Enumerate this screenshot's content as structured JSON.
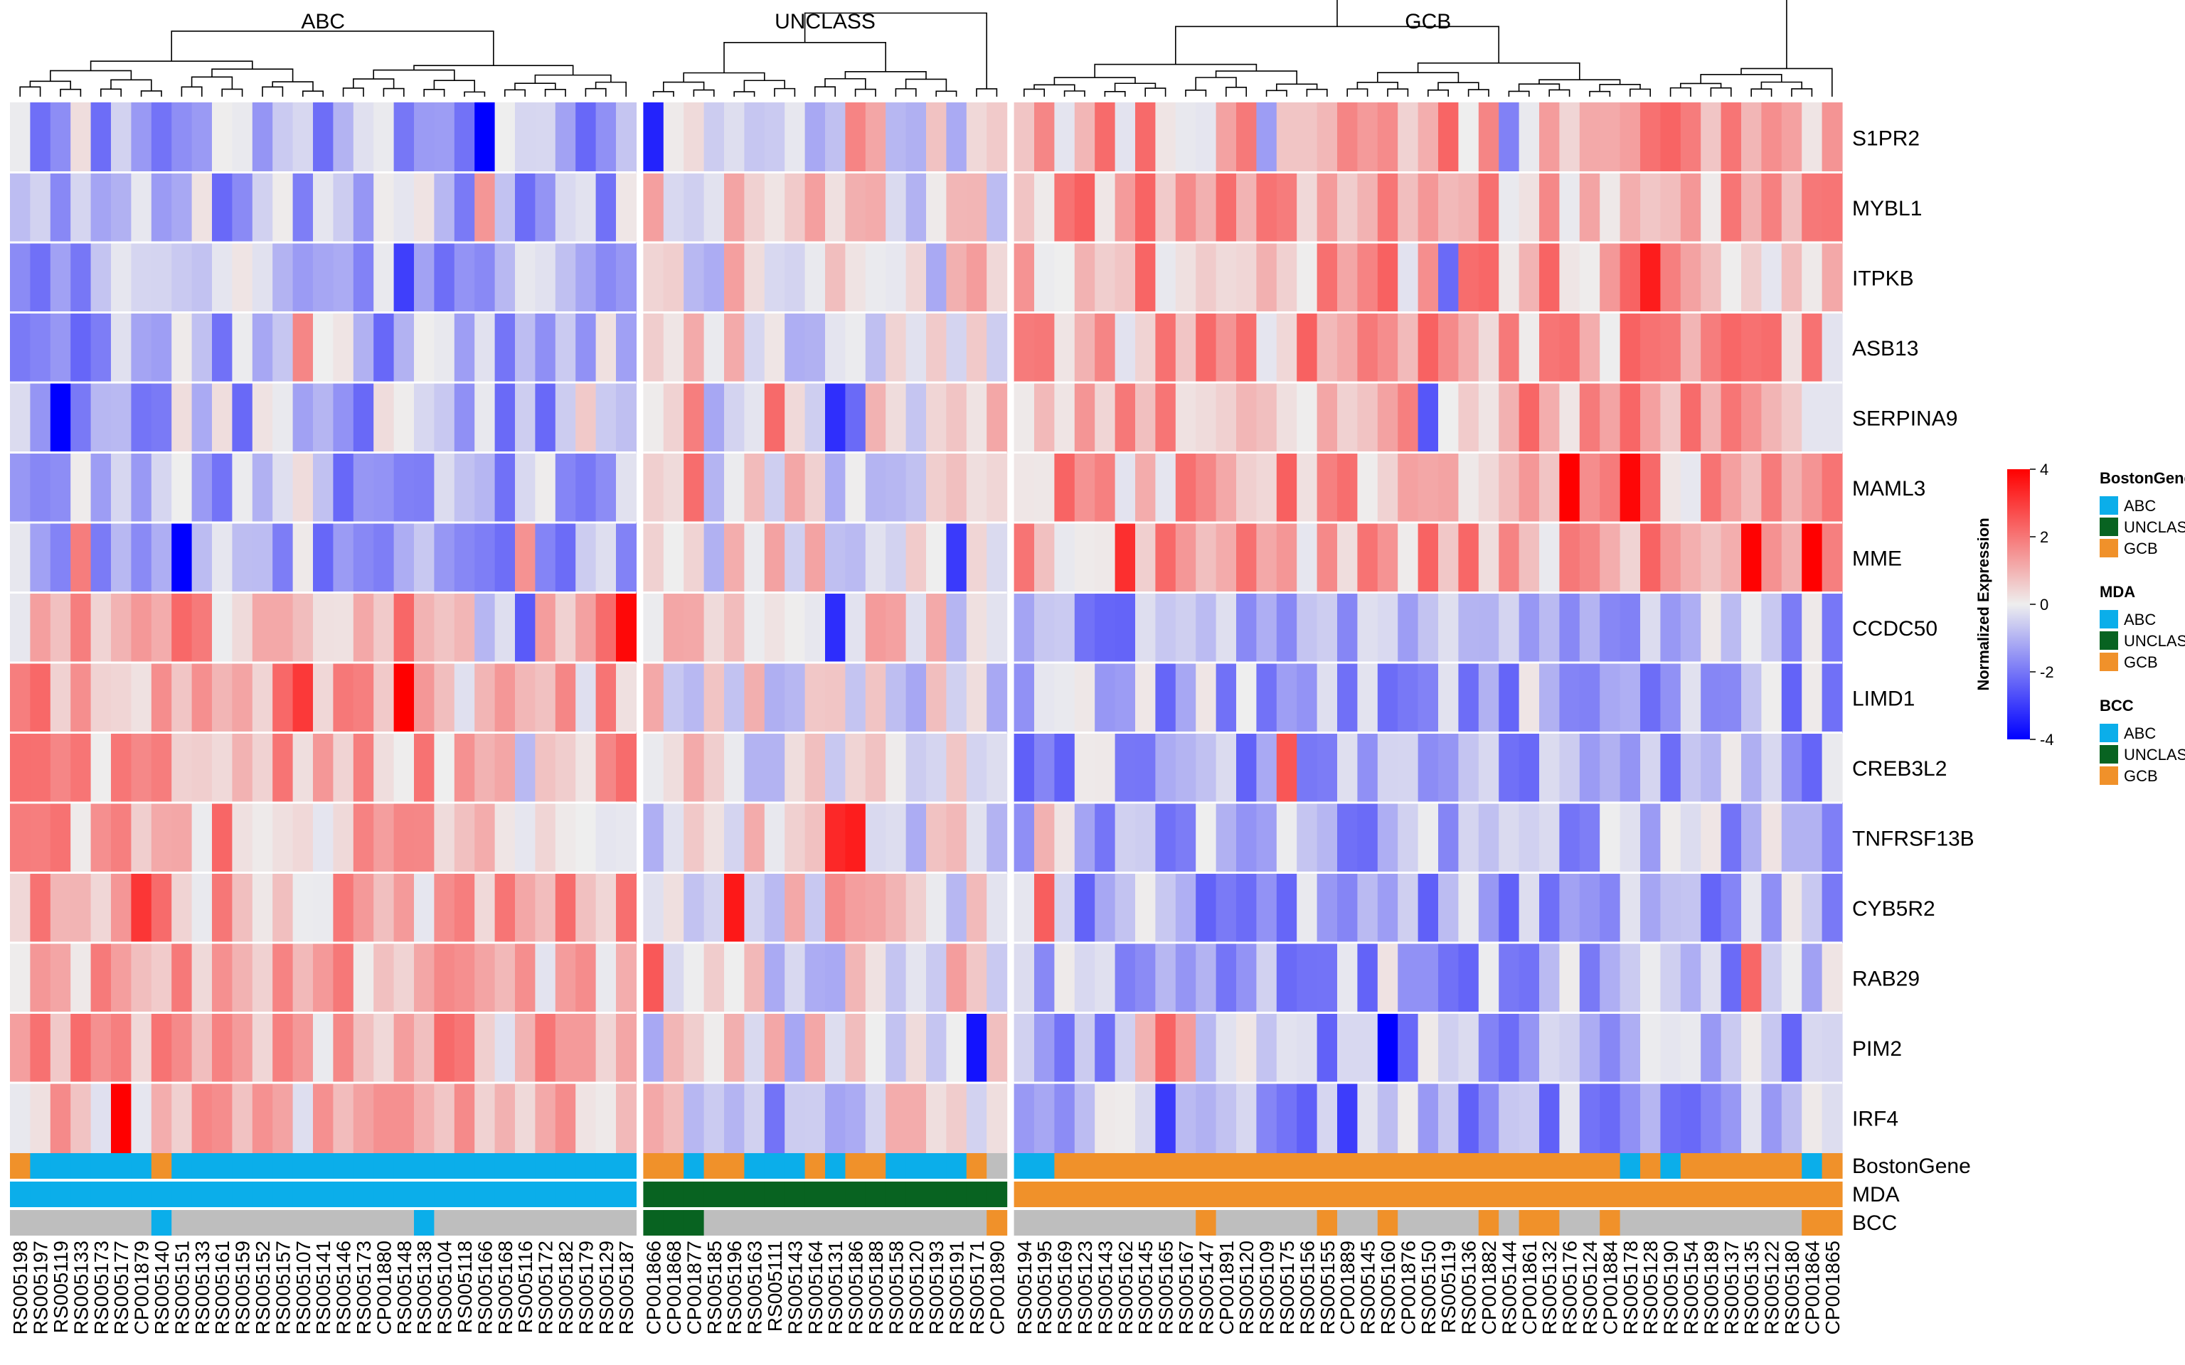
{
  "chart_data": {
    "type": "heatmap",
    "title": "",
    "panels": [
      {
        "name": "ABC",
        "samples": [
          "RS005198",
          "RS005197",
          "RS005119",
          "RS005133",
          "RS005173",
          "RS005177",
          "CP001879",
          "RS005140",
          "RS005151",
          "RS005133",
          "RS005161",
          "RS005159",
          "RS005152",
          "RS005157",
          "RS005107",
          "RS005141",
          "RS005146",
          "RS005173",
          "CP001880",
          "RS005148",
          "RS005138",
          "RS005104",
          "RS005118",
          "RS005166",
          "RS005168",
          "RS005116",
          "RS005172",
          "RS005182",
          "RS005179",
          "RS005129",
          "RS005187"
        ]
      },
      {
        "name": "UNCLASS",
        "samples": [
          "CP001866",
          "CP001868",
          "CP001877",
          "RS005185",
          "RS005196",
          "RS005163",
          "RS005111",
          "RS005143",
          "RS005164",
          "RS005131",
          "RS005186",
          "RS005188",
          "RS005158",
          "RS005120",
          "RS005193",
          "RS005191",
          "RS005171",
          "CP001890"
        ]
      },
      {
        "name": "GCB",
        "samples": [
          "RS005194",
          "RS005195",
          "RS005169",
          "RS005123",
          "RS005143",
          "RS005162",
          "RS005145",
          "RS005165",
          "RS005167",
          "RS005147",
          "CP001891",
          "RS005120",
          "RS005109",
          "RS005175",
          "RS005156",
          "RS005155",
          "CP001889",
          "RS005145",
          "RS005160",
          "CP001876",
          "RS005150",
          "RS005119",
          "RS005136",
          "CP001882",
          "RS005144",
          "CP001861",
          "RS005132",
          "RS005176",
          "RS005124",
          "CP001884",
          "RS005178",
          "RS005128",
          "RS005190",
          "RS005154",
          "RS005189",
          "RS005137",
          "RS005135",
          "RS005122",
          "RS005180",
          "CP001864",
          "CP001865"
        ]
      }
    ],
    "genes": [
      "S1PR2",
      "MYBL1",
      "ITPKB",
      "ASB13",
      "SERPINA9",
      "MAML3",
      "MME",
      "CCDC50",
      "LIMD1",
      "CREB3L2",
      "TNFRSF13B",
      "CYB5R2",
      "RAB29",
      "PIM2",
      "IRF4"
    ],
    "annotation_tracks": [
      "BostonGene",
      "MDA",
      "BCC"
    ],
    "legend": {
      "title": "Normalized Expression",
      "ticks": [
        "4",
        "2",
        "0",
        "-2",
        "-4"
      ],
      "range": [
        -4,
        4
      ],
      "groups": [
        {
          "title": "BostonGene",
          "items": [
            "ABC",
            "UNCLASS",
            "GCB"
          ]
        },
        {
          "title": "MDA",
          "items": [
            "ABC",
            "UNCLASS",
            "GCB"
          ]
        },
        {
          "title": "BCC",
          "items": [
            "ABC",
            "UNCLASS",
            "GCB"
          ]
        }
      ]
    },
    "category_colors": {
      "ABC": "#0BAEEA",
      "UNCLASS": "#086321",
      "GCB": "#F0912A",
      "NA": "#BEBEBE"
    },
    "scale_colors": {
      "low": "#0000FF",
      "mid": "#EEEEEE",
      "high": "#FF0000"
    }
  }
}
